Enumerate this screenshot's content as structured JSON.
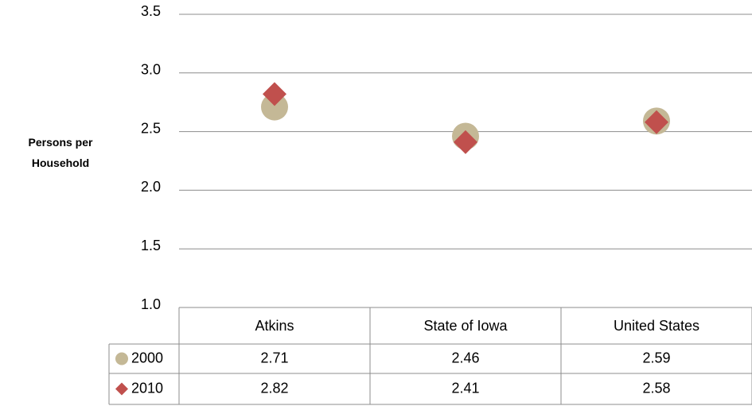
{
  "chart_data": {
    "type": "scatter",
    "y_label": "Persons per Household",
    "categories": [
      "Atkins",
      "State of Iowa",
      "United States"
    ],
    "series": [
      {
        "name": "2000",
        "color": "#c4b896",
        "marker": "circle",
        "values": [
          2.71,
          2.46,
          2.59
        ]
      },
      {
        "name": "2010",
        "color": "#c0504d",
        "marker": "diamond",
        "values": [
          2.82,
          2.41,
          2.58
        ]
      }
    ],
    "ylim": [
      1,
      3.5
    ],
    "yticks": [
      {
        "value": 1,
        "label": "1.0"
      },
      1.5,
      {
        "value": 2,
        "label": "2.0"
      },
      2.5,
      {
        "value": 3,
        "label": "3.0"
      },
      3.5
    ],
    "grid": true
  }
}
